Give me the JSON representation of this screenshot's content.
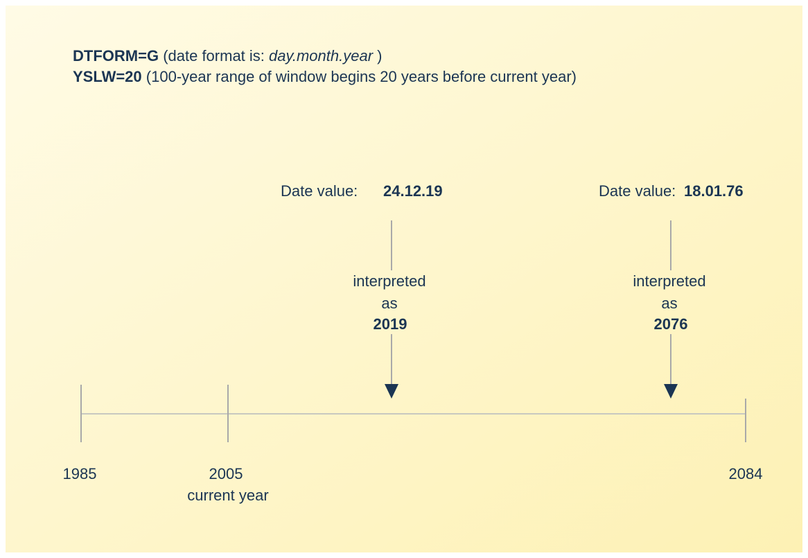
{
  "header": {
    "line1": {
      "key": "DTFORM=G",
      "text": "(date format is:",
      "format": "day.month.year",
      "close": ")"
    },
    "line2": {
      "key": "YSLW=20",
      "text": "(100-year range of window begins 20 years before current year)"
    }
  },
  "markers": [
    {
      "label": "Date value:",
      "value": "24.12.19",
      "interpreted": "interpreted",
      "as": "as",
      "year": "2019"
    },
    {
      "label": "Date value:",
      "value": "18.01.76",
      "interpreted": "interpreted",
      "as": "as",
      "year": "2076"
    }
  ],
  "timeline": {
    "start": "1985",
    "current": "2005",
    "current_note": "current year",
    "end": "2084"
  }
}
